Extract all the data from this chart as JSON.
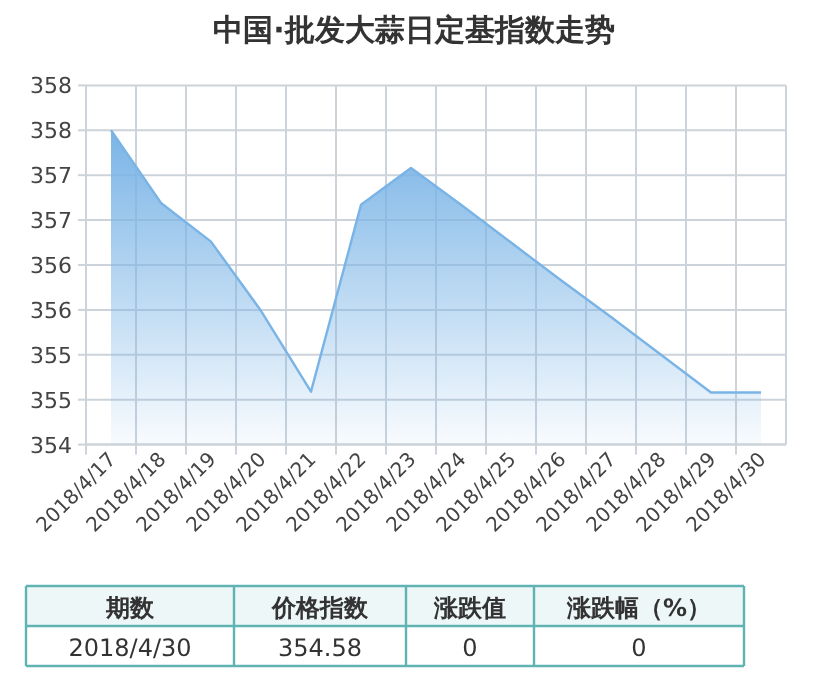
{
  "chart_data": {
    "type": "area",
    "title": "中国·批发大蒜日定基指数走势",
    "categories": [
      "2018/4/17",
      "2018/4/18",
      "2018/4/19",
      "2018/4/20",
      "2018/4/21",
      "2018/4/22",
      "2018/4/23",
      "2018/4/24",
      "2018/4/25",
      "2018/4/26",
      "2018/4/27",
      "2018/4/28",
      "2018/4/29",
      "2018/4/30"
    ],
    "values": [
      357.5,
      356.69,
      356.26,
      355.49,
      354.59,
      356.67,
      357.08,
      356.67,
      356.25,
      355.83,
      355.42,
      355.0,
      354.58,
      354.58
    ],
    "color": "#7ab4e6",
    "ylim": [
      354,
      358
    ],
    "yticks": [
      354,
      {
        "value": 354.5,
        "label": "355"
      },
      355,
      {
        "value": 355.5,
        "label": "356"
      },
      356,
      {
        "value": 356.5,
        "label": "357"
      },
      357,
      {
        "value": 357.5,
        "label": "358"
      },
      358
    ],
    "grid": true,
    "annotations": [
      "期数",
      "价格指数",
      "涨跌值",
      "涨跌幅（%）",
      "2018/4/30",
      "354.58",
      "0",
      "0"
    ]
  }
}
